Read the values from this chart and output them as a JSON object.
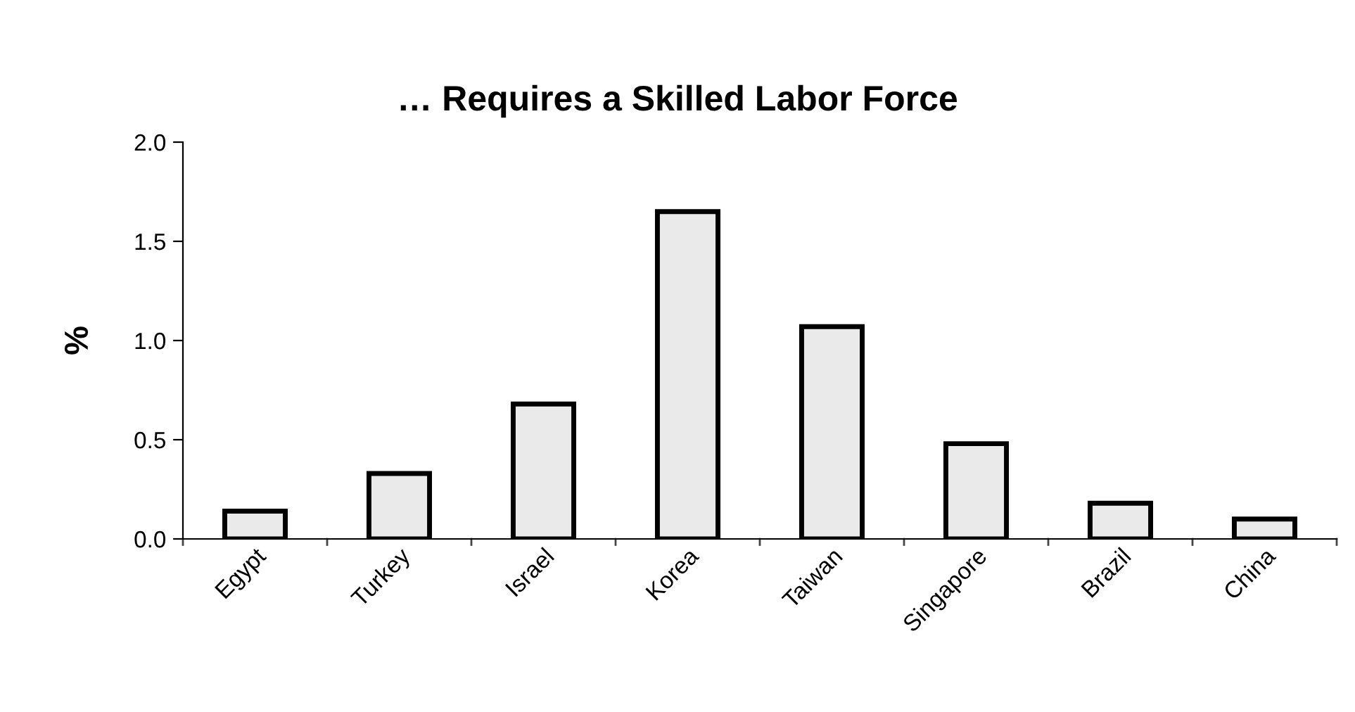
{
  "chart_data": {
    "type": "bar",
    "title": "… Requires a Skilled Labor Force",
    "ylabel": "%",
    "categories": [
      "Egypt",
      "Turkey",
      "Israel",
      "Korea",
      "Taiwan",
      "Singapore",
      "Brazil",
      "China"
    ],
    "values": [
      0.14,
      0.33,
      0.68,
      1.65,
      1.07,
      0.48,
      0.18,
      0.1
    ],
    "color": "#eaeaea",
    "ylim": [
      0,
      2.0
    ],
    "yticks": [
      {
        "value": 0,
        "label": "0.0"
      },
      {
        "value": 0.5,
        "label": "0.5"
      },
      {
        "value": 1.0,
        "label": "1.0"
      },
      {
        "value": 1.5,
        "label": "1.5"
      },
      {
        "value": 2.0,
        "label": "2.0"
      }
    ],
    "grid": false,
    "legend": false
  }
}
